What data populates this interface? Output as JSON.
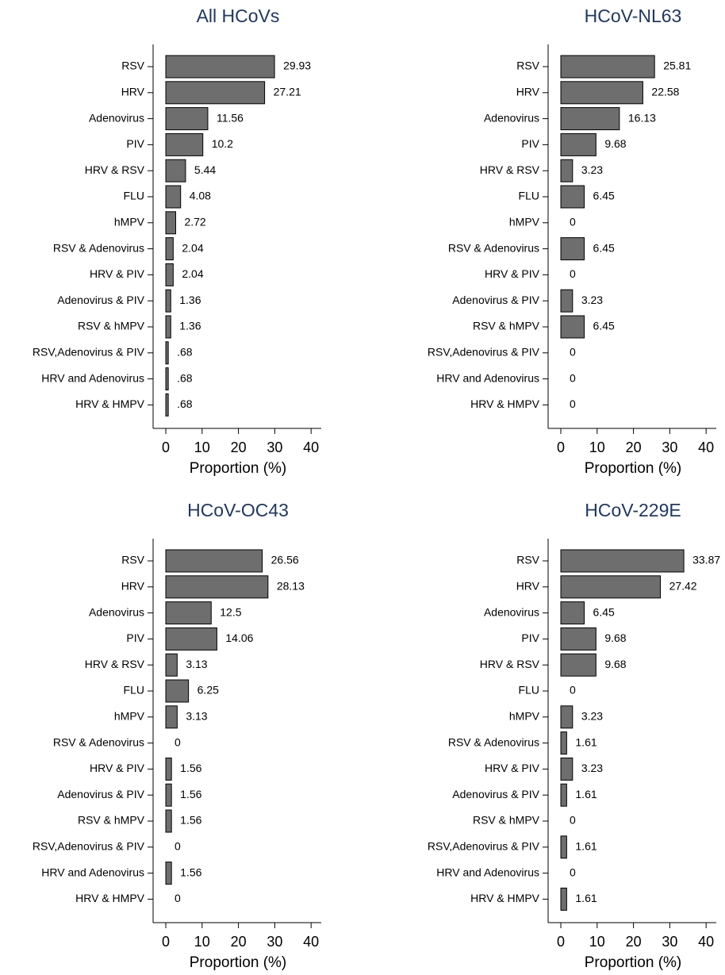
{
  "chart_data": [
    {
      "type": "bar",
      "orientation": "horizontal",
      "title": "All HCoVs",
      "categories": [
        "RSV",
        "HRV",
        "Adenovirus",
        "PIV",
        "HRV & RSV",
        "FLU",
        "hMPV",
        "RSV & Adenovirus",
        "HRV & PIV",
        "Adenovirus & PIV",
        "RSV & hMPV",
        "RSV,Adenovirus & PIV",
        "HRV and Adenovirus",
        "HRV & HMPV"
      ],
      "values": [
        29.93,
        27.21,
        11.56,
        10.2,
        5.44,
        4.08,
        2.72,
        2.04,
        2.04,
        1.36,
        1.36,
        0.68,
        0.68,
        0.68
      ],
      "value_labels": [
        "29.93",
        "27.21",
        "11.56",
        "10.2",
        "5.44",
        "4.08",
        "2.72",
        "2.04",
        "2.04",
        "1.36",
        "1.36",
        ".68",
        ".68",
        ".68"
      ],
      "color": "#6e6e6e",
      "xlim": [
        -3.5,
        42.8
      ],
      "xticks": [
        0,
        10,
        20,
        30,
        40
      ],
      "xlabel": "Proportion (%)"
    },
    {
      "type": "bar",
      "orientation": "horizontal",
      "title": "HCoV-NL63",
      "categories": [
        "RSV",
        "HRV",
        "Adenovirus",
        "PIV",
        "HRV & RSV",
        "FLU",
        "hMPV",
        "RSV & Adenovirus",
        "HRV & PIV",
        "Adenovirus & PIV",
        "RSV & hMPV",
        "RSV,Adenovirus & PIV",
        "HRV and Adenovirus",
        "HRV & HMPV"
      ],
      "values": [
        25.81,
        22.58,
        16.13,
        9.68,
        3.23,
        6.45,
        0,
        6.45,
        0,
        3.23,
        6.45,
        0,
        0,
        0
      ],
      "color": "#6e6e6e",
      "xlim": [
        -3.5,
        42.8
      ],
      "xticks": [
        0,
        10,
        20,
        30,
        40
      ],
      "xlabel": "Proportion (%)"
    },
    {
      "type": "bar",
      "orientation": "horizontal",
      "title": "HCoV-OC43",
      "categories": [
        "RSV",
        "HRV",
        "Adenovirus",
        "PIV",
        "HRV & RSV",
        "FLU",
        "hMPV",
        "RSV & Adenovirus",
        "HRV & PIV",
        "Adenovirus & PIV",
        "RSV & hMPV",
        "RSV,Adenovirus & PIV",
        "HRV and Adenovirus",
        "HRV & HMPV"
      ],
      "values": [
        26.56,
        28.13,
        12.5,
        14.06,
        3.13,
        6.25,
        3.13,
        0,
        1.56,
        1.56,
        1.56,
        0,
        1.56,
        0
      ],
      "color": "#6e6e6e",
      "xlim": [
        -3.5,
        42.8
      ],
      "xticks": [
        0,
        10,
        20,
        30,
        40
      ],
      "xlabel": "Proportion (%)"
    },
    {
      "type": "bar",
      "orientation": "horizontal",
      "title": "HCoV-229E",
      "categories": [
        "RSV",
        "HRV",
        "Adenovirus",
        "PIV",
        "HRV & RSV",
        "FLU",
        "hMPV",
        "RSV & Adenovirus",
        "HRV & PIV",
        "Adenovirus & PIV",
        "RSV & hMPV",
        "RSV,Adenovirus & PIV",
        "HRV and Adenovirus",
        "HRV & HMPV"
      ],
      "values": [
        33.87,
        27.42,
        6.45,
        9.68,
        9.68,
        0,
        3.23,
        1.61,
        3.23,
        1.61,
        0,
        1.61,
        0,
        1.61
      ],
      "color": "#6e6e6e",
      "xlim": [
        -3.5,
        42.8
      ],
      "xticks": [
        0,
        10,
        20,
        30,
        40
      ],
      "xlabel": "Proportion (%)"
    }
  ]
}
